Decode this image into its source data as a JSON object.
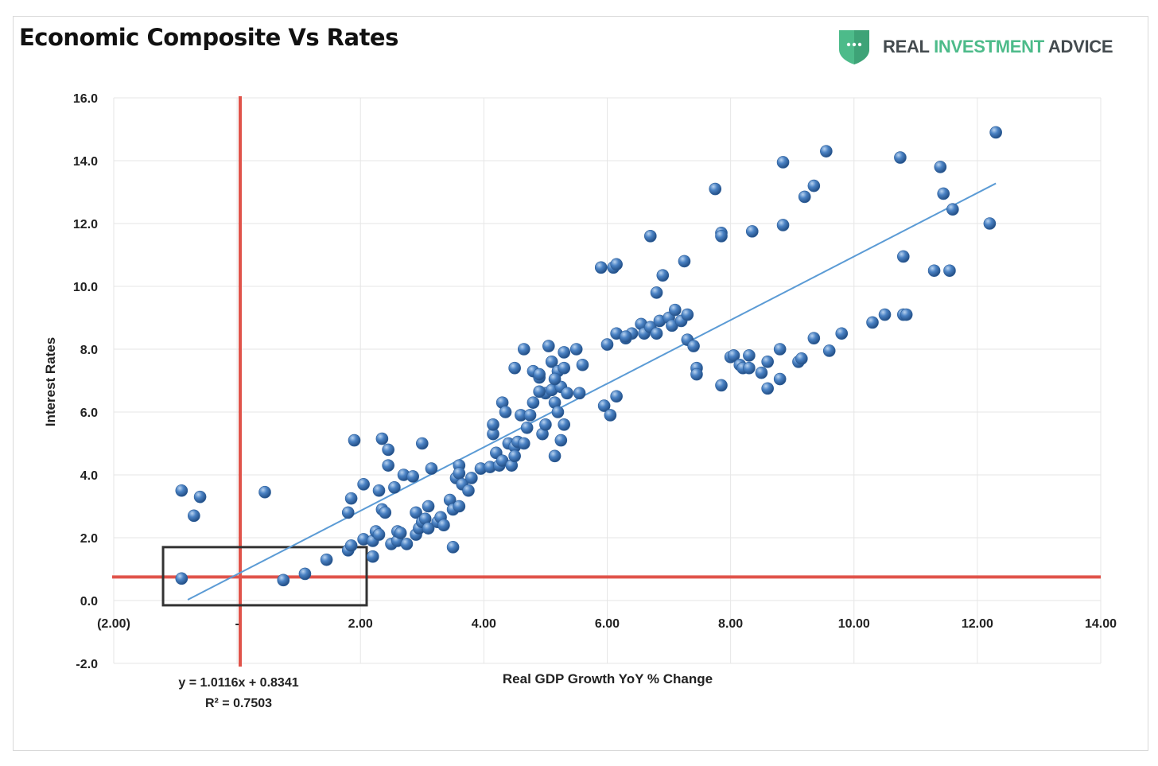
{
  "header": {
    "title": "Economic Composite Vs Rates",
    "logo": {
      "icon": "shield-dots-icon",
      "word1": "REAL",
      "word2": "INVESTMENT",
      "word3": "ADVICE",
      "brand_color": "#4dbb8a",
      "text_color": "#444b4f"
    }
  },
  "colors": {
    "point": "#3f77b8",
    "trend": "#5b9bd5",
    "reference": "#e0534a",
    "box": "#333333",
    "grid": "#e6e6e6"
  },
  "chart_data": {
    "type": "scatter",
    "title": "Economic Composite Vs Rates",
    "xlabel": "Real GDP Growth YoY % Change",
    "ylabel": "Interest Rates",
    "xlim": [
      -2,
      14
    ],
    "ylim": [
      -2,
      16
    ],
    "x_ticks": [
      {
        "value": -2,
        "label": "(2.00)"
      },
      {
        "value": 0,
        "label": "-"
      },
      {
        "value": 2,
        "label": "2.00"
      },
      {
        "value": 4,
        "label": "4.00"
      },
      {
        "value": 6,
        "label": "6.00"
      },
      {
        "value": 8,
        "label": "8.00"
      },
      {
        "value": 10,
        "label": "10.00"
      },
      {
        "value": 12,
        "label": "12.00"
      },
      {
        "value": 14,
        "label": "14.00"
      }
    ],
    "y_ticks": [
      {
        "value": -2,
        "label": "-2.0"
      },
      {
        "value": 0,
        "label": "0.0"
      },
      {
        "value": 2,
        "label": "2.0"
      },
      {
        "value": 4,
        "label": "4.0"
      },
      {
        "value": 6,
        "label": "6.0"
      },
      {
        "value": 8,
        "label": "8.0"
      },
      {
        "value": 10,
        "label": "10.0"
      },
      {
        "value": 12,
        "label": "12.0"
      },
      {
        "value": 14,
        "label": "14.0"
      },
      {
        "value": 16,
        "label": "16.0"
      }
    ],
    "grid": true,
    "trendline": {
      "slope": 1.0116,
      "intercept": 0.8341,
      "x_range": [
        -0.8,
        12.3
      ],
      "equation": "y = 1.0116x + 0.8341",
      "r_squared": "R² = 0.7503"
    },
    "reference_lines": {
      "vertical_x": 0.05,
      "horizontal_y": 0.75
    },
    "highlight_box": {
      "x0": -1.2,
      "x1": 2.1,
      "y0": -0.15,
      "y1": 1.7
    },
    "points": [
      [
        -0.9,
        0.7
      ],
      [
        -0.9,
        3.5
      ],
      [
        -0.6,
        3.3
      ],
      [
        -0.7,
        2.7
      ],
      [
        0.45,
        3.45
      ],
      [
        0.75,
        0.65
      ],
      [
        1.1,
        0.85
      ],
      [
        1.45,
        1.3
      ],
      [
        1.8,
        1.6
      ],
      [
        1.85,
        1.75
      ],
      [
        1.8,
        2.8
      ],
      [
        1.85,
        3.25
      ],
      [
        1.9,
        5.1
      ],
      [
        2.05,
        1.95
      ],
      [
        2.05,
        3.7
      ],
      [
        2.2,
        1.4
      ],
      [
        2.2,
        1.9
      ],
      [
        2.25,
        2.2
      ],
      [
        2.3,
        2.1
      ],
      [
        2.3,
        3.5
      ],
      [
        2.35,
        2.9
      ],
      [
        2.4,
        2.8
      ],
      [
        2.35,
        5.15
      ],
      [
        2.45,
        4.3
      ],
      [
        2.45,
        4.8
      ],
      [
        2.5,
        1.8
      ],
      [
        2.55,
        3.6
      ],
      [
        2.6,
        1.9
      ],
      [
        2.6,
        2.2
      ],
      [
        2.65,
        2.15
      ],
      [
        2.7,
        4.0
      ],
      [
        2.75,
        1.8
      ],
      [
        2.85,
        3.95
      ],
      [
        2.9,
        2.8
      ],
      [
        2.9,
        2.1
      ],
      [
        2.95,
        2.3
      ],
      [
        3.0,
        2.5
      ],
      [
        3.0,
        5.0
      ],
      [
        3.05,
        2.6
      ],
      [
        3.1,
        2.3
      ],
      [
        3.1,
        3.0
      ],
      [
        3.15,
        4.2
      ],
      [
        3.25,
        2.5
      ],
      [
        3.3,
        2.65
      ],
      [
        3.35,
        2.4
      ],
      [
        3.45,
        3.2
      ],
      [
        3.5,
        1.7
      ],
      [
        3.5,
        2.9
      ],
      [
        3.55,
        3.9
      ],
      [
        3.6,
        3.0
      ],
      [
        3.6,
        4.3
      ],
      [
        3.6,
        4.05
      ],
      [
        3.65,
        3.7
      ],
      [
        3.75,
        3.5
      ],
      [
        3.8,
        3.9
      ],
      [
        3.95,
        4.2
      ],
      [
        4.1,
        4.25
      ],
      [
        4.15,
        5.3
      ],
      [
        4.15,
        5.6
      ],
      [
        4.2,
        4.7
      ],
      [
        4.25,
        4.3
      ],
      [
        4.3,
        4.45
      ],
      [
        4.3,
        6.3
      ],
      [
        4.35,
        6.0
      ],
      [
        4.4,
        5.0
      ],
      [
        4.45,
        4.3
      ],
      [
        4.5,
        4.9
      ],
      [
        4.5,
        4.6
      ],
      [
        4.55,
        5.05
      ],
      [
        4.5,
        7.4
      ],
      [
        4.6,
        5.9
      ],
      [
        4.65,
        5.0
      ],
      [
        4.65,
        8.0
      ],
      [
        4.7,
        5.5
      ],
      [
        4.75,
        5.9
      ],
      [
        4.8,
        6.3
      ],
      [
        4.8,
        7.3
      ],
      [
        4.9,
        7.1
      ],
      [
        4.9,
        7.2
      ],
      [
        4.95,
        5.3
      ],
      [
        5.0,
        6.6
      ],
      [
        5.0,
        5.6
      ],
      [
        5.05,
        8.1
      ],
      [
        5.1,
        7.6
      ],
      [
        5.1,
        6.7
      ],
      [
        5.15,
        6.3
      ],
      [
        5.15,
        4.6
      ],
      [
        5.2,
        7.3
      ],
      [
        5.2,
        6.0
      ],
      [
        5.25,
        5.1
      ],
      [
        5.25,
        6.8
      ],
      [
        5.3,
        7.4
      ],
      [
        5.3,
        7.9
      ],
      [
        5.3,
        5.6
      ],
      [
        5.35,
        6.6
      ],
      [
        5.5,
        8.0
      ],
      [
        5.55,
        6.6
      ],
      [
        5.6,
        7.5
      ],
      [
        5.9,
        10.6
      ],
      [
        5.95,
        6.2
      ],
      [
        6.0,
        8.15
      ],
      [
        6.05,
        5.9
      ],
      [
        6.1,
        10.6
      ],
      [
        6.15,
        10.7
      ],
      [
        6.15,
        8.5
      ],
      [
        6.15,
        6.5
      ],
      [
        6.3,
        8.35
      ],
      [
        6.4,
        8.5
      ],
      [
        6.55,
        8.8
      ],
      [
        6.6,
        8.5
      ],
      [
        6.7,
        8.7
      ],
      [
        6.7,
        11.6
      ],
      [
        6.8,
        9.8
      ],
      [
        6.8,
        8.5
      ],
      [
        6.85,
        8.9
      ],
      [
        6.9,
        10.35
      ],
      [
        7.0,
        9.0
      ],
      [
        7.05,
        8.75
      ],
      [
        7.1,
        9.25
      ],
      [
        7.2,
        8.9
      ],
      [
        7.25,
        10.8
      ],
      [
        7.3,
        9.1
      ],
      [
        7.3,
        8.3
      ],
      [
        7.4,
        8.1
      ],
      [
        7.45,
        7.4
      ],
      [
        7.45,
        7.2
      ],
      [
        7.75,
        13.1
      ],
      [
        7.85,
        11.7
      ],
      [
        7.85,
        11.6
      ],
      [
        7.85,
        6.85
      ],
      [
        8.0,
        7.75
      ],
      [
        8.05,
        7.8
      ],
      [
        8.15,
        7.5
      ],
      [
        8.2,
        7.4
      ],
      [
        8.3,
        7.4
      ],
      [
        8.3,
        7.8
      ],
      [
        8.35,
        11.75
      ],
      [
        8.5,
        7.25
      ],
      [
        8.6,
        7.6
      ],
      [
        8.6,
        6.75
      ],
      [
        8.8,
        8.0
      ],
      [
        8.8,
        7.05
      ],
      [
        8.85,
        13.95
      ],
      [
        8.85,
        11.95
      ],
      [
        9.1,
        7.6
      ],
      [
        9.15,
        7.7
      ],
      [
        9.2,
        12.85
      ],
      [
        9.35,
        13.2
      ],
      [
        9.35,
        8.35
      ],
      [
        9.55,
        14.3
      ],
      [
        9.6,
        7.95
      ],
      [
        9.8,
        8.5
      ],
      [
        10.3,
        8.85
      ],
      [
        10.5,
        9.1
      ],
      [
        10.75,
        14.1
      ],
      [
        10.8,
        10.95
      ],
      [
        10.8,
        9.1
      ],
      [
        10.85,
        9.1
      ],
      [
        11.3,
        10.5
      ],
      [
        11.4,
        13.8
      ],
      [
        11.45,
        12.95
      ],
      [
        11.55,
        10.5
      ],
      [
        11.6,
        12.45
      ],
      [
        12.2,
        12.0
      ],
      [
        12.3,
        14.9
      ],
      [
        6.3,
        8.4
      ],
      [
        4.9,
        6.65
      ],
      [
        5.15,
        7.05
      ]
    ]
  },
  "annotation": {
    "equation": "y = 1.0116x + 0.8341",
    "r_squared": "R² = 0.7503"
  }
}
